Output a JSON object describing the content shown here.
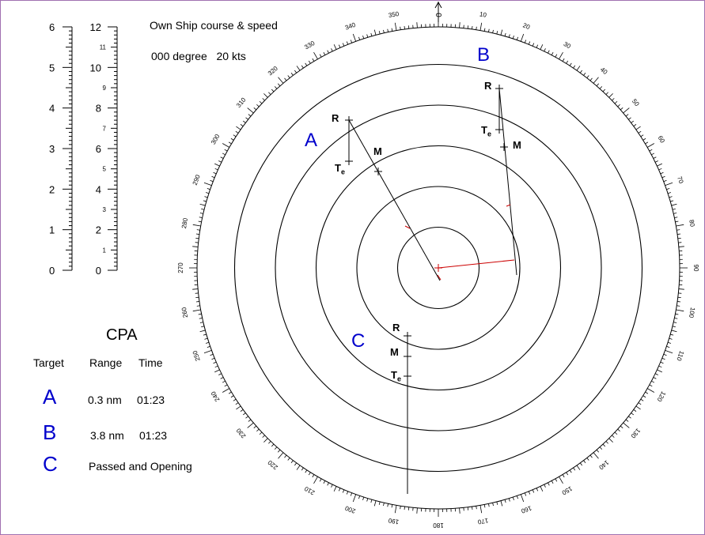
{
  "own_ship": {
    "heading": "Own Ship course & speed",
    "course_speed": "000 degree   20 kts"
  },
  "scales": {
    "left": {
      "ticks": [
        "6",
        "5",
        "4",
        "3",
        "2",
        "1",
        "0"
      ]
    },
    "right": {
      "major": [
        "12",
        "10",
        "8",
        "6",
        "4",
        "2",
        "0"
      ],
      "minor": [
        "11",
        "9",
        "7",
        "5",
        "3",
        "1"
      ]
    }
  },
  "compass": {
    "north_label": "0"
  },
  "cpa": {
    "title": "CPA",
    "headers": {
      "target": "Target",
      "range": "Range",
      "time": "Time"
    },
    "rows": [
      {
        "target": "A",
        "range": "0.3 nm",
        "time": "01:23"
      },
      {
        "target": "B",
        "range": "3.8 nm",
        "time": "01:23"
      },
      {
        "target": "C",
        "text": "Passed and Opening"
      }
    ]
  },
  "targets": [
    {
      "name": "A",
      "labels": {
        "r": "R",
        "m": "M",
        "t": "T",
        "t_sub": "e"
      }
    },
    {
      "name": "B",
      "labels": {
        "r": "R",
        "m": "M",
        "t": "T",
        "t_sub": "e"
      }
    },
    {
      "name": "C",
      "labels": {
        "r": "R",
        "m": "M",
        "t": "T",
        "t_sub": "e"
      }
    }
  ],
  "colors": {
    "target_letters": "#0000cc",
    "relative_motion": "#cc0000"
  }
}
